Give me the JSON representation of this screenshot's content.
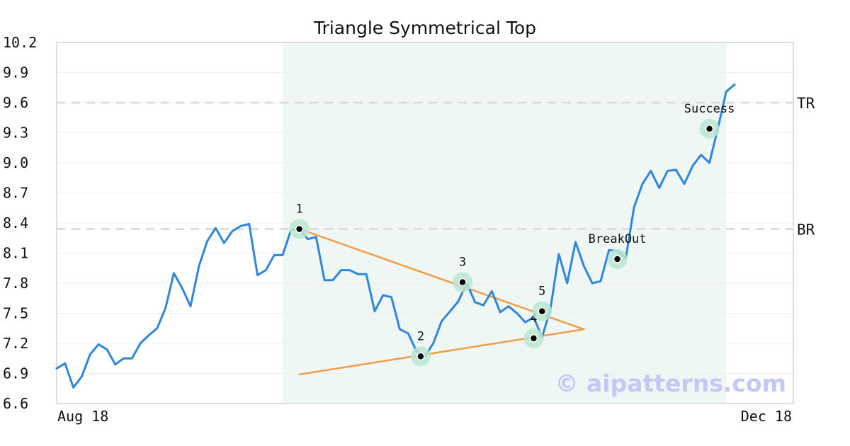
{
  "chart_data": {
    "type": "line",
    "title": "Triangle Symmetrical Top",
    "ylim": [
      6.6,
      10.2
    ],
    "y_ticks": [
      "10.2",
      "9.9",
      "9.6",
      "9.3",
      "9.0",
      "8.7",
      "8.4",
      "8.1",
      "7.8",
      "7.5",
      "7.2",
      "6.9",
      "6.6"
    ],
    "x_ticks": [
      "Aug 18",
      "Dec 18"
    ],
    "grid": true,
    "colors": {
      "price": "#2e86de",
      "trendline": "#f39c45",
      "pattern_zone": "#eef7f3",
      "marker_halo": "#b9e6cf",
      "level_line": "#dddddd"
    },
    "series": [
      {
        "values": [
          6.95,
          7.0,
          6.76,
          6.87,
          7.09,
          7.19,
          7.14,
          6.99,
          7.05,
          7.05,
          7.2,
          7.28,
          7.35,
          7.55,
          7.9,
          7.75,
          7.57,
          7.97,
          8.22,
          8.35,
          8.2,
          8.32,
          8.37,
          8.39,
          7.88,
          7.93,
          8.08,
          8.08,
          8.33,
          8.34,
          8.24,
          8.26,
          7.83,
          7.83,
          7.93,
          7.93,
          7.89,
          7.89,
          7.52,
          7.68,
          7.66,
          7.34,
          7.3,
          7.12,
          7.07,
          7.2,
          7.42,
          7.52,
          7.62,
          7.8,
          7.61,
          7.58,
          7.72,
          7.51,
          7.57,
          7.5,
          7.41,
          7.46,
          7.26,
          7.54,
          8.09,
          7.8,
          8.21,
          7.97,
          7.8,
          7.82,
          8.13,
          8.12,
          8.05,
          8.56,
          8.79,
          8.92,
          8.75,
          8.92,
          8.93,
          8.79,
          8.97,
          9.08,
          9.0,
          9.34,
          9.71,
          9.78
        ]
      }
    ],
    "pattern_zone": {
      "start_index": 27,
      "end_index": 80
    },
    "levels": [
      {
        "label": "TR",
        "value": 9.6
      },
      {
        "label": "BR",
        "value": 8.34
      }
    ],
    "trendlines": [
      {
        "from": {
          "index": 29,
          "value": 8.34
        },
        "to": {
          "index": 63,
          "value": 7.34
        }
      },
      {
        "from": {
          "index": 29,
          "value": 6.89
        },
        "to": {
          "index": 63,
          "value": 7.34
        }
      }
    ],
    "markers": [
      {
        "label": "1",
        "index": 29,
        "value": 8.34,
        "label_pos": "above"
      },
      {
        "label": "2",
        "index": 43.5,
        "value": 7.07,
        "label_pos": "above"
      },
      {
        "label": "3",
        "index": 48.5,
        "value": 7.81,
        "label_pos": "above"
      },
      {
        "label": "4",
        "index": 57,
        "value": 7.25,
        "label_pos": "above"
      },
      {
        "label": "5",
        "index": 58,
        "value": 7.52,
        "label_pos": "above"
      },
      {
        "label": "BreakOut",
        "index": 67,
        "value": 8.04,
        "label_pos": "above"
      },
      {
        "label": "Success",
        "index": 78,
        "value": 9.34,
        "label_pos": "above"
      }
    ],
    "watermark": "© aipatterns.com"
  }
}
